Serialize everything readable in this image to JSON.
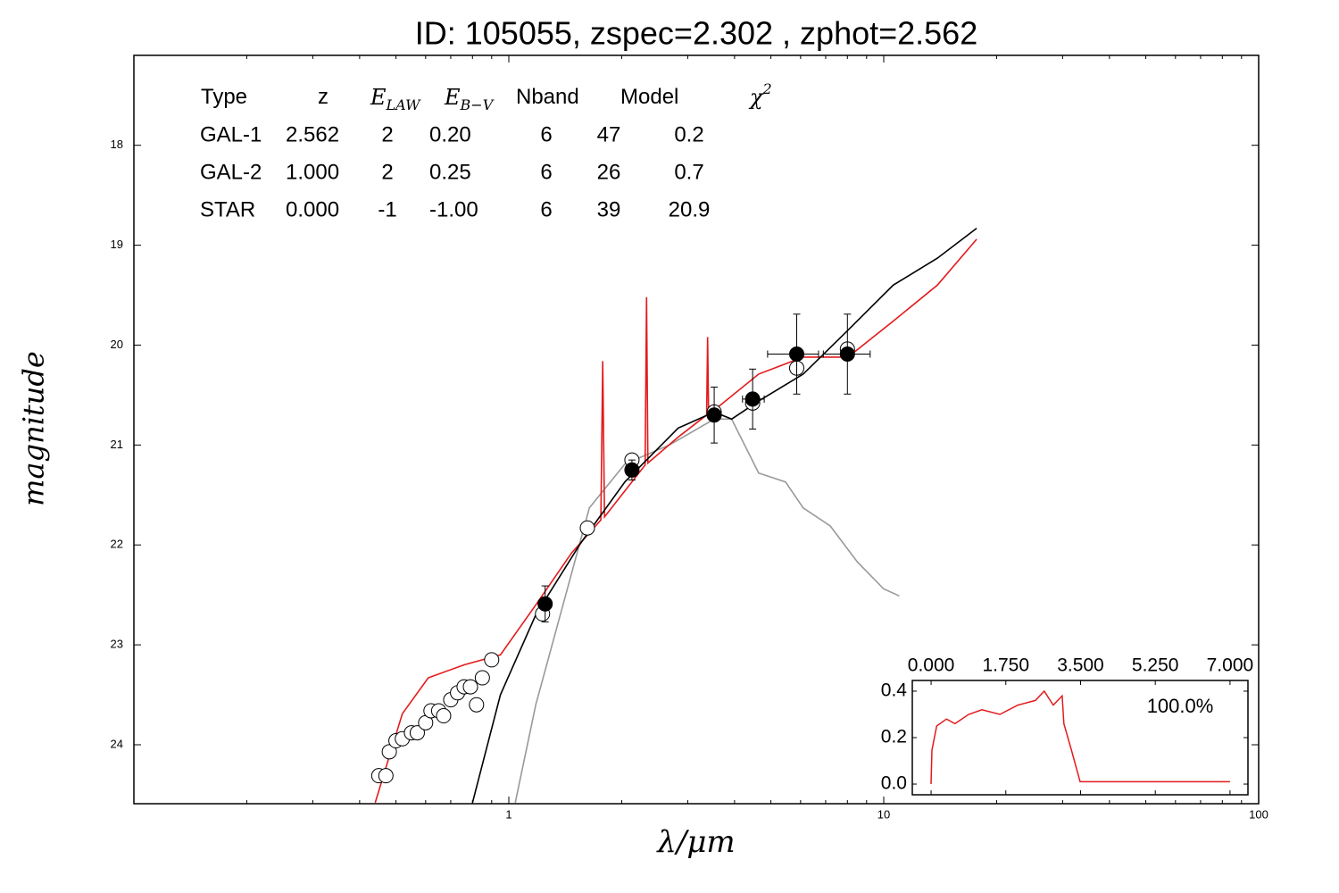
{
  "chart_data": [
    {
      "type": "line",
      "title": "ID:  105055, zspec=2.302 , zphot=2.562",
      "xlabel": "λ/μm",
      "ylabel": "magnitude",
      "xlog": true,
      "xlim": [
        0.1,
        100
      ],
      "xticks": [
        1,
        10,
        100
      ],
      "xminorticks": [
        0.2,
        0.3,
        0.4,
        0.5,
        0.6,
        0.7,
        0.8,
        0.9,
        2,
        3,
        4,
        5,
        6,
        7,
        8,
        9,
        20,
        30,
        40,
        50,
        60,
        70,
        80,
        90
      ],
      "ylim": [
        24.59,
        17.1
      ],
      "yticks": [
        18,
        19,
        20,
        21,
        22,
        23,
        24
      ],
      "series": [
        {
          "style": "line",
          "color": "#999999",
          "x": [
            1.04,
            1.18,
            1.39,
            1.64,
            2.04,
            2.68,
            3.53,
            3.93,
            4.64,
            5.47,
            6.1,
            7.2,
            8.5,
            10,
            11.0
          ],
          "y": [
            24.58,
            23.6,
            22.62,
            21.63,
            21.19,
            21.0,
            20.74,
            20.74,
            21.28,
            21.37,
            21.63,
            21.81,
            22.17,
            22.44,
            22.51
          ]
        },
        {
          "style": "line",
          "color": "#e31a1c",
          "x": [
            0.44,
            0.52,
            0.61,
            0.76,
            0.95,
            1.18,
            1.47,
            1.76,
            1.78,
            1.8,
            2.04,
            2.31,
            2.33,
            2.35,
            2.83,
            3.37,
            3.39,
            3.41,
            3.53,
            4.64,
            6.1,
            8.03,
            10.6,
            13.9,
            17.7
          ],
          "y": [
            24.58,
            23.69,
            23.33,
            23.2,
            23.1,
            22.6,
            22.08,
            21.75,
            20.16,
            21.72,
            21.46,
            21.2,
            19.52,
            21.18,
            20.92,
            20.7,
            19.92,
            20.7,
            20.65,
            20.29,
            20.12,
            20.12,
            19.76,
            19.4,
            18.94
          ]
        },
        {
          "style": "line",
          "color": "#000000",
          "x": [
            0.8,
            0.95,
            1.18,
            1.55,
            2.04,
            2.83,
            3.53,
            3.93,
            4.64,
            6.1,
            8.03,
            10.6,
            13.9,
            17.7
          ],
          "y": [
            24.58,
            23.5,
            22.7,
            21.99,
            21.37,
            20.83,
            20.67,
            20.74,
            20.56,
            20.29,
            19.85,
            19.4,
            19.13,
            18.83
          ]
        },
        {
          "style": "open",
          "x": [
            0.45,
            0.47,
            0.48,
            0.5,
            0.52,
            0.55,
            0.57,
            0.6,
            0.62,
            0.65,
            0.67,
            0.7,
            0.73,
            0.76,
            0.79,
            0.82,
            0.85,
            0.9,
            1.23,
            1.62,
            2.13,
            3.53,
            4.47,
            5.86,
            8.0
          ],
          "y": [
            24.31,
            24.31,
            24.07,
            23.96,
            23.94,
            23.88,
            23.88,
            23.78,
            23.66,
            23.66,
            23.71,
            23.55,
            23.48,
            23.42,
            23.42,
            23.6,
            23.33,
            23.15,
            22.69,
            21.83,
            21.15,
            20.67,
            20.58,
            20.23,
            20.04
          ]
        },
        {
          "style": "filled",
          "x": [
            1.25,
            2.13,
            3.53,
            4.47,
            5.86,
            8.0
          ],
          "y": [
            22.59,
            21.25,
            20.7,
            20.54,
            20.09,
            20.09
          ],
          "yerr": [
            0.18,
            0.1,
            0.28,
            0.3,
            0.4,
            0.4
          ],
          "xlo": [
            1.2,
            2.05,
            3.4,
            4.2,
            4.9,
            6.9
          ],
          "xhi": [
            1.3,
            2.2,
            3.65,
            4.8,
            6.7,
            9.2
          ]
        }
      ],
      "table": {
        "header": [
          [
            "Type"
          ],
          [
            "z"
          ],
          [
            "E",
            "LAW"
          ],
          [
            "E",
            "B−V"
          ],
          [
            "Nband"
          ],
          [
            "Model"
          ],
          [
            "χ",
            "2"
          ]
        ],
        "rows": [
          {
            "color": "#e31a1c",
            "cells": [
              "GAL-1",
              "2.562",
              "2",
              "0.20",
              "6",
              "47",
              "0.2"
            ]
          },
          {
            "color": "#000000",
            "cells": [
              "GAL-2",
              "1.000",
              "2",
              "0.25",
              "6",
              "26",
              "0.7"
            ]
          },
          {
            "color": "#999999",
            "cells": [
              "STAR",
              "0.000",
              "-1",
              "-1.00",
              "6",
              "39",
              "20.9"
            ]
          }
        ]
      }
    },
    {
      "type": "line",
      "annotation": "100.0%",
      "xlim": [
        -0.44,
        7.42
      ],
      "xticks": [
        {
          "value": 0,
          "label": "0.000"
        },
        {
          "value": 1.75,
          "label": "1.750"
        },
        {
          "value": 3.5,
          "label": "3.500"
        },
        {
          "value": 5.25,
          "label": "5.250"
        },
        {
          "value": 7,
          "label": "7.000"
        }
      ],
      "ylim": [
        -0.046,
        0.446
      ],
      "yticks": [
        {
          "value": 0,
          "label": "0.0"
        },
        0.2,
        0.4
      ],
      "series": [
        {
          "style": "line",
          "color": "#e31a1c",
          "x": [
            0,
            0.02,
            0.13,
            0.36,
            0.56,
            0.88,
            1.19,
            1.61,
            2.03,
            2.44,
            2.65,
            2.86,
            3.07,
            3.11,
            3.28,
            3.49,
            7.0
          ],
          "y": [
            0,
            0.146,
            0.25,
            0.28,
            0.26,
            0.3,
            0.32,
            0.3,
            0.34,
            0.36,
            0.4,
            0.34,
            0.38,
            0.26,
            0.15,
            0.01,
            0.01
          ]
        }
      ]
    }
  ]
}
